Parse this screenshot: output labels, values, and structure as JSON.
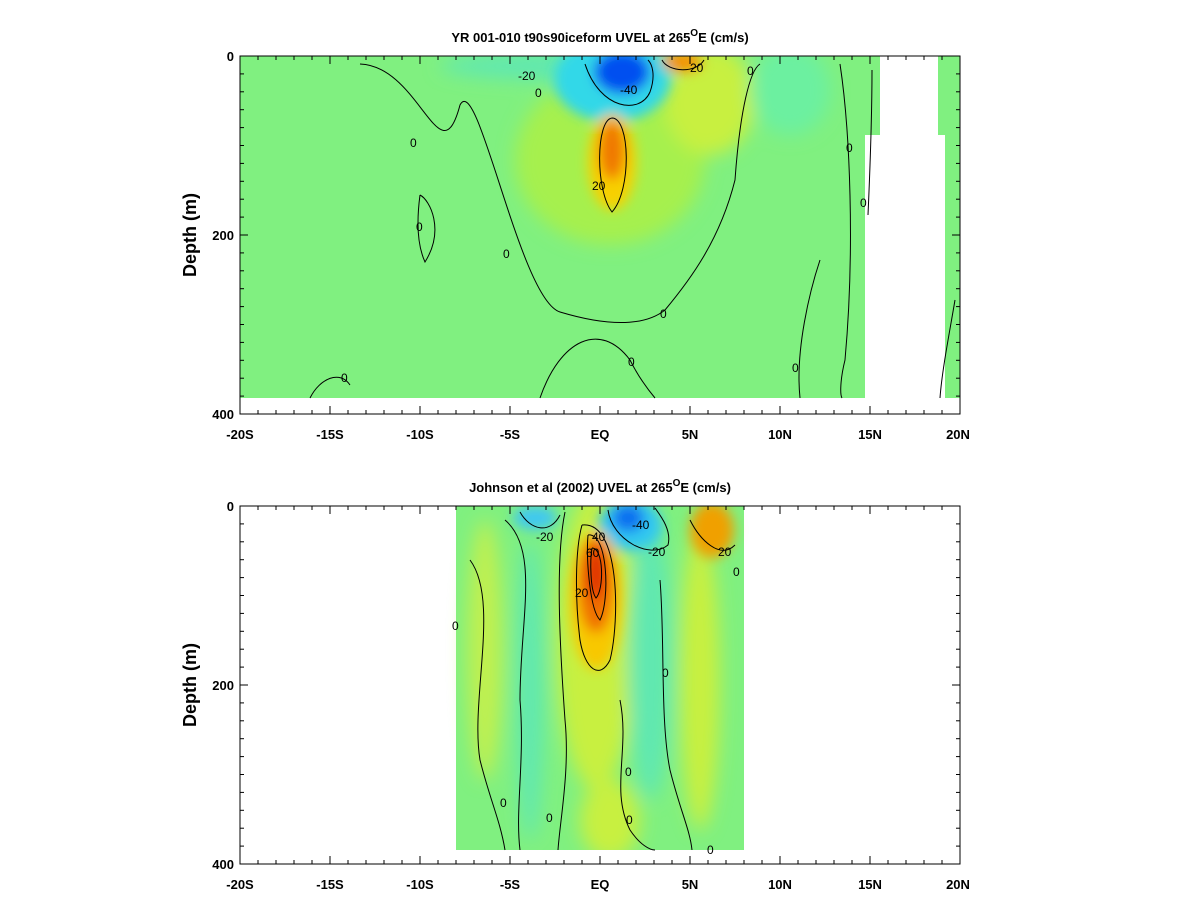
{
  "chart_data": [
    {
      "type": "heatmap",
      "title_main": "YR 001-010 t90s90iceform UVEL at 265",
      "title_sup": "O",
      "title_end": "E (cm/s)",
      "ylabel": "Depth (m)",
      "xlabel": "",
      "x_ticks": [
        "-20S",
        "-15S",
        "-10S",
        "-5S",
        "EQ",
        "5N",
        "10N",
        "15N",
        "20N"
      ],
      "y_ticks": [
        "0",
        "200",
        "400"
      ],
      "xlim": [
        -20,
        20
      ],
      "ylim": [
        400,
        0
      ],
      "contour_labels": [
        "-20",
        "-40",
        "20",
        "20",
        "0",
        "0",
        "0",
        "0",
        "0",
        "0",
        "0",
        "0",
        "0",
        "0",
        "0"
      ],
      "features": [
        {
          "name": "surface westward jet",
          "lat": 1.5,
          "depth": 30,
          "value": -45
        },
        {
          "name": "equatorial undercurrent core",
          "lat": 0.5,
          "depth": 120,
          "value": 35
        },
        {
          "name": "north equatorial countercurrent",
          "lat": 5,
          "depth": 10,
          "value": 25
        }
      ]
    },
    {
      "type": "heatmap",
      "title_main": "Johnson et al (2002) UVEL at 265",
      "title_sup": "O",
      "title_end": "E (cm/s)",
      "ylabel": "Depth (m)",
      "xlabel": "",
      "x_ticks": [
        "-20S",
        "-15S",
        "-10S",
        "-5S",
        "EQ",
        "5N",
        "10N",
        "15N",
        "20N"
      ],
      "y_ticks": [
        "0",
        "200",
        "400"
      ],
      "xlim": [
        -20,
        20
      ],
      "ylim": [
        400,
        0
      ],
      "data_extent": [
        -8,
        8
      ],
      "contour_labels": [
        "-20",
        "-40",
        "-20",
        "40",
        "60",
        "20",
        "20",
        "0",
        "0",
        "0",
        "0",
        "0",
        "0",
        "0",
        "0"
      ],
      "features": [
        {
          "name": "equatorial undercurrent core",
          "lat": -0.2,
          "depth": 80,
          "value": 65
        },
        {
          "name": "surface westward jet",
          "lat": 1.5,
          "depth": 20,
          "value": -45
        },
        {
          "name": "north equatorial countercurrent",
          "lat": 6,
          "depth": 30,
          "value": 30
        }
      ]
    }
  ]
}
